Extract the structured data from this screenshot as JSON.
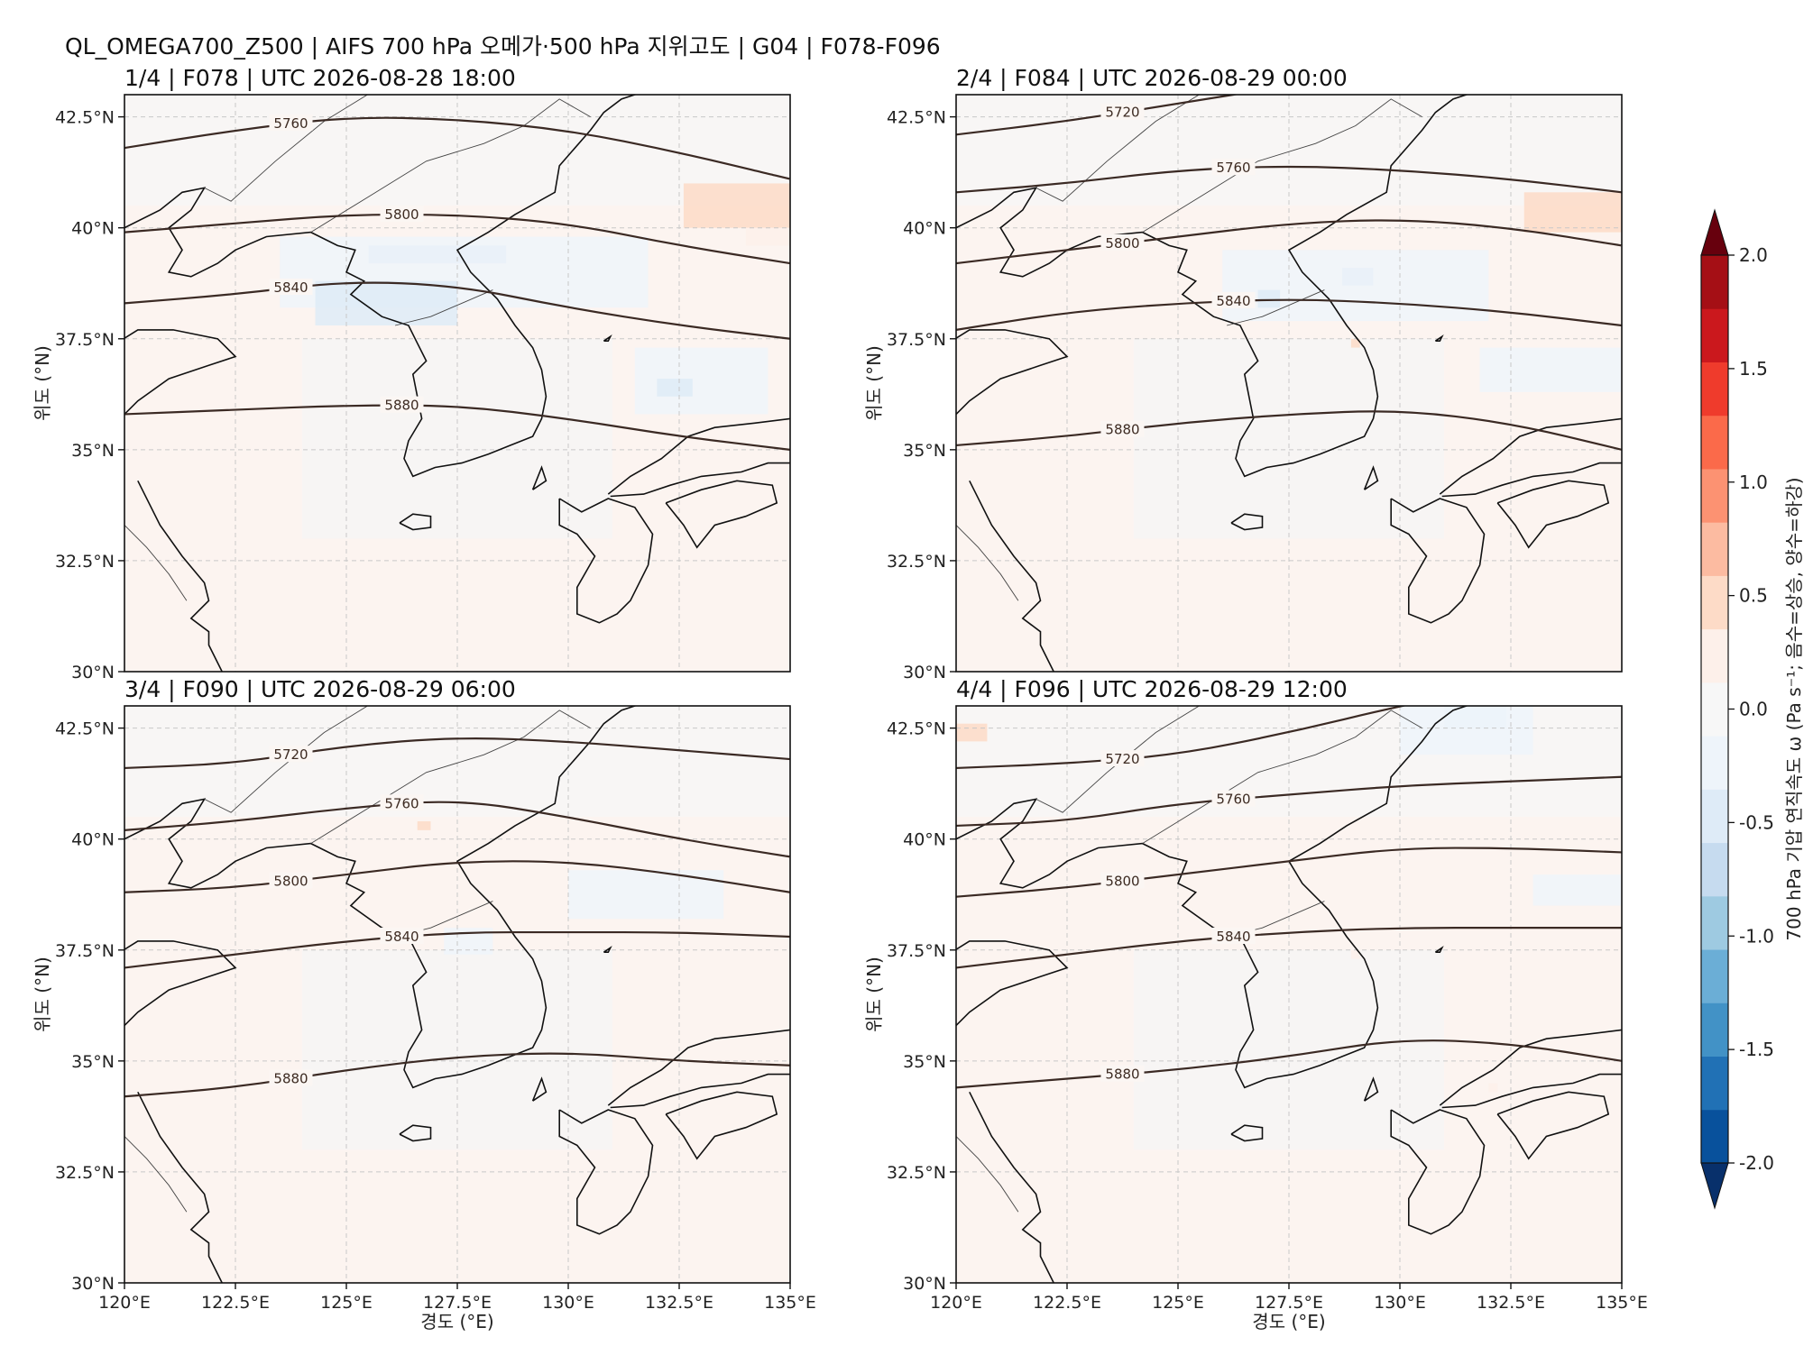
{
  "suptitle": "QL_OMEGA700_Z500 | AIFS 700 hPa 오메가·500 hPa 지위고도 | G04 | F078-F096",
  "xlabel": "경도 (°E)",
  "ylabel": "위도 (°N)",
  "lon_ticks": [
    "120°E",
    "122.5°E",
    "125°E",
    "127.5°E",
    "130°E",
    "132.5°E",
    "135°E"
  ],
  "lat_ticks": [
    "30°N",
    "32.5°N",
    "35°N",
    "37.5°N",
    "40°N",
    "42.5°N"
  ],
  "extent": {
    "lon": [
      120,
      135
    ],
    "lat": [
      30,
      43
    ]
  },
  "colorbar": {
    "label": "700 hPa 기압 연직속도 ω (Pa s⁻¹; 음수=상승, 양수=하강)",
    "range": [
      -2.0,
      2.0
    ],
    "ticks": [
      "-2.0",
      "-1.5",
      "-1.0",
      "-0.5",
      "0.0",
      "0.5",
      "1.0",
      "1.5",
      "2.0"
    ],
    "colors": [
      "#08306b",
      "#08519c",
      "#2171b5",
      "#4292c6",
      "#6baed6",
      "#9ecae1",
      "#c6dbef",
      "#deebf7",
      "#eef4fa",
      "#f7f7f7",
      "#fdf0ea",
      "#fddbc7",
      "#fcbba1",
      "#fc9272",
      "#fb6a4a",
      "#ef3b2c",
      "#cb181d",
      "#a50f15",
      "#67000d"
    ]
  },
  "chart_data": [
    {
      "type": "heatmap",
      "title": "1/4 | F078 | UTC 2026-08-28 18:00",
      "z500": [
        {
          "level": "5760",
          "lat": [
            41.8,
            42.2,
            42.5,
            42.45,
            42.2,
            41.7,
            41.1
          ]
        },
        {
          "level": "5800",
          "lat": [
            39.9,
            40.1,
            40.3,
            40.3,
            40.1,
            39.6,
            39.2
          ]
        },
        {
          "level": "5840",
          "lat": [
            38.3,
            38.5,
            38.8,
            38.7,
            38.2,
            37.8,
            37.5
          ]
        },
        {
          "level": "5880",
          "lat": [
            35.8,
            35.9,
            36.0,
            36.0,
            35.7,
            35.3,
            35.0
          ]
        }
      ],
      "omega": [
        {
          "lat": [
            39.2,
            39.6
          ],
          "lon": [
            125.5,
            128.6
          ],
          "v": -0.7
        },
        {
          "lat": [
            38.2,
            39.8
          ],
          "lon": [
            123.5,
            131.8
          ],
          "v": -0.25
        },
        {
          "lat": [
            37.8,
            38.8
          ],
          "lon": [
            124.3,
            127.5
          ],
          "v": -0.5
        },
        {
          "lat": [
            35.8,
            37.3
          ],
          "lon": [
            131.5,
            134.5
          ],
          "v": -0.25
        },
        {
          "lat": [
            36.2,
            36.6
          ],
          "lon": [
            132.0,
            132.8
          ],
          "v": -0.45
        },
        {
          "lat": [
            40.0,
            41.0
          ],
          "lon": [
            132.6,
            135.0
          ],
          "v": 0.35
        },
        {
          "lat": [
            39.6,
            40.0
          ],
          "lon": [
            134.0,
            135.0
          ],
          "v": 0.2
        }
      ]
    },
    {
      "type": "heatmap",
      "title": "2/4 | F084 | UTC 2026-08-29 00:00",
      "z500": [
        {
          "level": "5720",
          "lat": [
            42.1,
            42.4,
            42.8,
            43.2,
            43.5,
            43.6,
            43.6
          ]
        },
        {
          "level": "5760",
          "lat": [
            40.8,
            41.0,
            41.3,
            41.4,
            41.3,
            41.1,
            40.8
          ]
        },
        {
          "level": "5800",
          "lat": [
            39.2,
            39.5,
            39.8,
            40.1,
            40.2,
            40.0,
            39.6
          ]
        },
        {
          "level": "5840",
          "lat": [
            37.7,
            38.1,
            38.3,
            38.4,
            38.3,
            38.1,
            37.8
          ]
        },
        {
          "level": "5880",
          "lat": [
            35.1,
            35.3,
            35.6,
            35.8,
            35.9,
            35.6,
            35.0
          ]
        }
      ],
      "omega": [
        {
          "lat": [
            38.7,
            39.1
          ],
          "lon": [
            128.7,
            129.4
          ],
          "v": -0.6
        },
        {
          "lat": [
            37.9,
            39.5
          ],
          "lon": [
            126.0,
            132.0
          ],
          "v": -0.3
        },
        {
          "lat": [
            38.2,
            38.6
          ],
          "lon": [
            126.8,
            127.3
          ],
          "v": -0.45
        },
        {
          "lat": [
            36.3,
            37.3
          ],
          "lon": [
            131.8,
            135.0
          ],
          "v": -0.2
        },
        {
          "lat": [
            39.9,
            40.8
          ],
          "lon": [
            132.8,
            135.0
          ],
          "v": 0.35
        },
        {
          "lat": [
            37.3,
            37.5
          ],
          "lon": [
            128.9,
            129.1
          ],
          "v": 0.4
        }
      ]
    },
    {
      "type": "heatmap",
      "title": "3/4 | F090 | UTC 2026-08-29 06:00",
      "z500": [
        {
          "level": "5720",
          "lat": [
            41.6,
            41.7,
            42.1,
            42.3,
            42.2,
            42.0,
            41.8
          ]
        },
        {
          "level": "5760",
          "lat": [
            40.2,
            40.4,
            40.7,
            40.9,
            40.5,
            40.0,
            39.6
          ]
        },
        {
          "level": "5800",
          "lat": [
            38.8,
            38.9,
            39.2,
            39.5,
            39.5,
            39.2,
            38.8
          ]
        },
        {
          "level": "5840",
          "lat": [
            37.1,
            37.4,
            37.7,
            37.9,
            37.9,
            37.9,
            37.8
          ]
        },
        {
          "level": "5880",
          "lat": [
            34.2,
            34.4,
            34.8,
            35.1,
            35.2,
            35.0,
            34.9
          ]
        }
      ],
      "omega": [
        {
          "lat": [
            38.2,
            39.3
          ],
          "lon": [
            130.0,
            133.5
          ],
          "v": -0.25
        },
        {
          "lat": [
            37.4,
            38.0
          ],
          "lon": [
            127.2,
            128.3
          ],
          "v": -0.25
        },
        {
          "lat": [
            40.2,
            40.4
          ],
          "lon": [
            126.6,
            126.9
          ],
          "v": 0.35
        }
      ]
    },
    {
      "type": "heatmap",
      "title": "4/4 | F096 | UTC 2026-08-29 12:00",
      "z500": [
        {
          "level": "5720",
          "lat": [
            41.6,
            41.7,
            41.9,
            42.4,
            43.0,
            43.5,
            43.8
          ]
        },
        {
          "level": "5760",
          "lat": [
            40.3,
            40.4,
            40.8,
            41.0,
            41.2,
            41.3,
            41.4
          ]
        },
        {
          "level": "5800",
          "lat": [
            38.7,
            38.9,
            39.2,
            39.5,
            39.8,
            39.8,
            39.7
          ]
        },
        {
          "level": "5840",
          "lat": [
            37.1,
            37.4,
            37.7,
            37.9,
            38.0,
            38.0,
            38.0
          ]
        },
        {
          "level": "5880",
          "lat": [
            34.4,
            34.6,
            34.8,
            35.1,
            35.5,
            35.4,
            35.0
          ]
        }
      ],
      "omega": [
        {
          "lat": [
            42.5,
            43.0
          ],
          "lon": [
            131.0,
            132.4
          ],
          "v": -0.5
        },
        {
          "lat": [
            41.9,
            43.0
          ],
          "lon": [
            130.0,
            133.0
          ],
          "v": -0.25
        },
        {
          "lat": [
            38.5,
            39.2
          ],
          "lon": [
            133.0,
            135.0
          ],
          "v": -0.2
        },
        {
          "lat": [
            42.2,
            42.6
          ],
          "lon": [
            120.0,
            120.7
          ],
          "v": 0.35
        },
        {
          "lat": [
            37.3,
            37.5
          ],
          "lon": [
            128.9,
            129.1
          ],
          "v": 0.3
        },
        {
          "lat": [
            34.3,
            34.5
          ],
          "lon": [
            132.0,
            132.2
          ],
          "v": 0.3
        }
      ]
    }
  ],
  "colors": {
    "base_red": "#fcf4f0",
    "base_white": "#f6f6f6",
    "base_blue": "#eef2f8",
    "contour": "#3b2a24",
    "coast": "#111111",
    "grid": "#c8c8c8"
  }
}
